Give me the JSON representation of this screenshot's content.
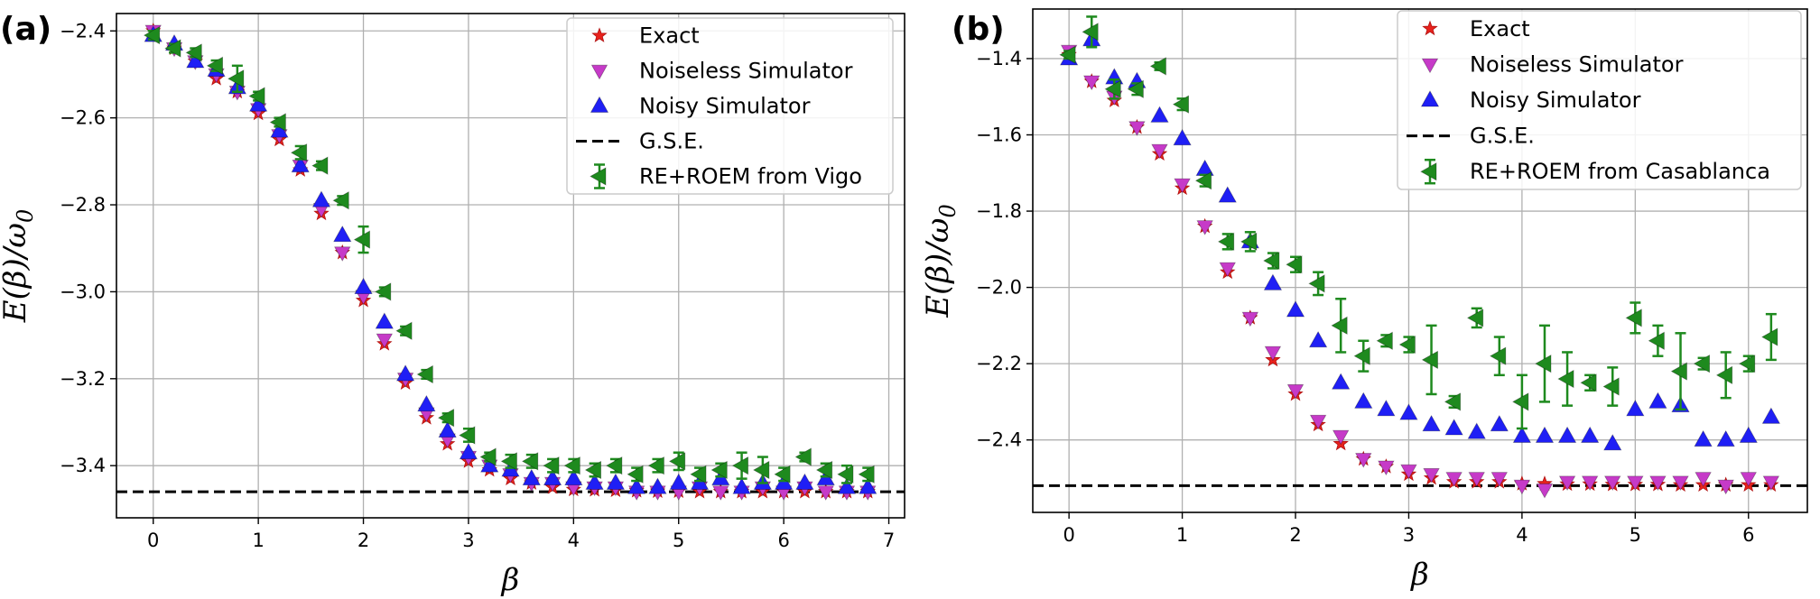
{
  "figure": {
    "panel_labels": [
      "(a)",
      "(b)"
    ]
  },
  "chart_data": [
    {
      "type": "scatter",
      "panel": "(a)",
      "xlabel": "β",
      "ylabel": "E(β)/ω0",
      "ylabel_parts": {
        "main": "E(β)/ω",
        "sub": "0"
      },
      "xlim": [
        -0.35,
        7.15
      ],
      "ylim": [
        -3.52,
        -2.36
      ],
      "xticks": [
        0,
        1,
        2,
        3,
        4,
        5,
        6,
        7
      ],
      "yticks": [
        -2.4,
        -2.6,
        -2.8,
        -3.0,
        -3.2,
        -3.4
      ],
      "ytick_labels": [
        "−2.4",
        "−2.6",
        "−2.8",
        "−3.0",
        "−3.2",
        "−3.4"
      ],
      "grid": true,
      "legend_position": "top-right",
      "gse": -3.46,
      "legend": [
        "Exact",
        "Noiseless Simulator",
        "Noisy Simulator",
        "G.S.E.",
        "RE+ROEM from Vigo"
      ],
      "x": [
        0,
        0.2,
        0.4,
        0.6,
        0.8,
        1.0,
        1.2,
        1.4,
        1.6,
        1.8,
        2.0,
        2.2,
        2.4,
        2.6,
        2.8,
        3.0,
        3.2,
        3.4,
        3.6,
        3.8,
        4.0,
        4.2,
        4.4,
        4.6,
        4.8,
        5.0,
        5.2,
        5.4,
        5.6,
        5.8,
        6.0,
        6.2,
        6.4,
        6.6,
        6.8
      ],
      "series": [
        {
          "name": "Exact",
          "marker": "star",
          "color": "#e8221c",
          "values": [
            -2.4,
            -2.44,
            -2.47,
            -2.51,
            -2.54,
            -2.59,
            -2.65,
            -2.72,
            -2.82,
            -2.91,
            -3.02,
            -3.12,
            -3.21,
            -3.29,
            -3.35,
            -3.39,
            -3.41,
            -3.43,
            -3.44,
            -3.45,
            -3.455,
            -3.456,
            -3.457,
            -3.458,
            -3.459,
            -3.459,
            -3.46,
            -3.46,
            -3.46,
            -3.46,
            -3.46,
            -3.46,
            -3.46,
            -3.46,
            -3.46
          ]
        },
        {
          "name": "Noiseless Simulator",
          "marker": "triangle-down",
          "color": "#c63ac8",
          "values": [
            -2.4,
            -2.44,
            -2.47,
            -2.5,
            -2.54,
            -2.58,
            -2.64,
            -2.71,
            -2.81,
            -2.91,
            -3.01,
            -3.11,
            -3.2,
            -3.28,
            -3.34,
            -3.38,
            -3.4,
            -3.42,
            -3.44,
            -3.44,
            -3.45,
            -3.45,
            -3.45,
            -3.46,
            -3.46,
            -3.46,
            -3.45,
            -3.46,
            -3.46,
            -3.45,
            -3.46,
            -3.45,
            -3.46,
            -3.46,
            -3.46
          ]
        },
        {
          "name": "Noisy Simulator",
          "marker": "triangle-up",
          "color": "#1f1ff5",
          "values": [
            -2.41,
            -2.43,
            -2.47,
            -2.49,
            -2.53,
            -2.57,
            -2.63,
            -2.71,
            -2.79,
            -2.87,
            -2.99,
            -3.07,
            -3.19,
            -3.26,
            -3.32,
            -3.37,
            -3.4,
            -3.41,
            -3.43,
            -3.43,
            -3.43,
            -3.44,
            -3.44,
            -3.45,
            -3.45,
            -3.44,
            -3.44,
            -3.43,
            -3.45,
            -3.44,
            -3.44,
            -3.44,
            -3.43,
            -3.45,
            -3.45
          ]
        },
        {
          "name": "RE+ROEM from Vigo",
          "marker": "triangle-left",
          "color": "#1e8a1e",
          "values": [
            -2.41,
            -2.44,
            -2.45,
            -2.48,
            -2.51,
            -2.55,
            -2.61,
            -2.68,
            -2.71,
            -2.79,
            -2.88,
            -3.0,
            -3.09,
            -3.19,
            -3.29,
            -3.33,
            -3.38,
            -3.39,
            -3.39,
            -3.4,
            -3.4,
            -3.41,
            -3.4,
            -3.42,
            -3.4,
            -3.39,
            -3.42,
            -3.41,
            -3.4,
            -3.41,
            -3.42,
            -3.38,
            -3.41,
            -3.42,
            -3.42
          ],
          "errors": [
            0.01,
            0.01,
            0.01,
            0.012,
            0.03,
            0.01,
            0.01,
            0.015,
            0.01,
            0.01,
            0.03,
            0.01,
            0.01,
            0.01,
            0.01,
            0.015,
            0.01,
            0.015,
            0.015,
            0.015,
            0.015,
            0.015,
            0.015,
            0.015,
            0.015,
            0.02,
            0.015,
            0.015,
            0.03,
            0.03,
            0.015,
            0.01,
            0.015,
            0.02,
            0.015
          ]
        }
      ]
    },
    {
      "type": "scatter",
      "panel": "(b)",
      "xlabel": "β",
      "ylabel": "E(β)/ω0",
      "ylabel_parts": {
        "main": "E(β)/ω",
        "sub": "0"
      },
      "xlim": [
        -0.32,
        6.52
      ],
      "ylim": [
        -2.59,
        -1.27
      ],
      "xticks": [
        0,
        1,
        2,
        3,
        4,
        5,
        6
      ],
      "yticks": [
        -1.4,
        -1.6,
        -1.8,
        -2.0,
        -2.2,
        -2.4
      ],
      "ytick_labels": [
        "−1.4",
        "−1.6",
        "−1.8",
        "−2.0",
        "−2.2",
        "−2.4"
      ],
      "grid": true,
      "legend_position": "top-right",
      "gse": -2.52,
      "legend": [
        "Exact",
        "Noiseless Simulator",
        "Noisy Simulator",
        "G.S.E.",
        "RE+ROEM from Casablanca"
      ],
      "x": [
        0,
        0.2,
        0.4,
        0.6,
        0.8,
        1.0,
        1.2,
        1.4,
        1.6,
        1.8,
        2.0,
        2.2,
        2.4,
        2.6,
        2.8,
        3.0,
        3.2,
        3.4,
        3.6,
        3.8,
        4.0,
        4.2,
        4.4,
        4.6,
        4.8,
        5.0,
        5.2,
        5.4,
        5.6,
        5.8,
        6.0,
        6.2
      ],
      "series": [
        {
          "name": "Exact",
          "marker": "star",
          "color": "#e8221c",
          "values": [
            -1.39,
            -1.46,
            -1.51,
            -1.58,
            -1.65,
            -1.74,
            -1.84,
            -1.96,
            -2.08,
            -2.19,
            -2.28,
            -2.36,
            -2.41,
            -2.45,
            -2.47,
            -2.49,
            -2.5,
            -2.51,
            -2.51,
            -2.51,
            -2.515,
            -2.515,
            -2.516,
            -2.516,
            -2.517,
            -2.517,
            -2.517,
            -2.518,
            -2.518,
            -2.518,
            -2.518,
            -2.518
          ]
        },
        {
          "name": "Noiseless Simulator",
          "marker": "triangle-down",
          "color": "#c63ac8",
          "values": [
            -1.38,
            -1.46,
            -1.5,
            -1.58,
            -1.64,
            -1.73,
            -1.84,
            -1.95,
            -2.08,
            -2.17,
            -2.27,
            -2.35,
            -2.39,
            -2.45,
            -2.47,
            -2.48,
            -2.49,
            -2.5,
            -2.5,
            -2.5,
            -2.52,
            -2.53,
            -2.51,
            -2.51,
            -2.51,
            -2.51,
            -2.51,
            -2.51,
            -2.5,
            -2.52,
            -2.5,
            -2.51
          ]
        },
        {
          "name": "Noisy Simulator",
          "marker": "triangle-up",
          "color": "#1f1ff5",
          "values": [
            -1.4,
            -1.35,
            -1.45,
            -1.46,
            -1.55,
            -1.61,
            -1.69,
            -1.76,
            -1.88,
            -1.99,
            -2.06,
            -2.14,
            -2.25,
            -2.3,
            -2.32,
            -2.33,
            -2.36,
            -2.37,
            -2.38,
            -2.36,
            -2.39,
            -2.39,
            -2.39,
            -2.39,
            -2.41,
            -2.32,
            -2.3,
            -2.31,
            -2.4,
            -2.4,
            -2.39,
            -2.34
          ]
        },
        {
          "name": "RE+ROEM from Casablanca",
          "marker": "triangle-left",
          "color": "#1e8a1e",
          "values": [
            -1.39,
            -1.33,
            -1.48,
            -1.48,
            -1.42,
            -1.52,
            -1.72,
            -1.88,
            -1.88,
            -1.93,
            -1.94,
            -1.99,
            -2.1,
            -2.18,
            -2.14,
            -2.15,
            -2.19,
            -2.3,
            -2.08,
            -2.18,
            -2.3,
            -2.2,
            -2.24,
            -2.25,
            -2.26,
            -2.08,
            -2.14,
            -2.22,
            -2.2,
            -2.23,
            -2.2,
            -2.13
          ],
          "errors": [
            0.01,
            0.04,
            0.025,
            0.015,
            0.01,
            0.015,
            0.015,
            0.02,
            0.025,
            0.02,
            0.02,
            0.03,
            0.07,
            0.04,
            0.015,
            0.02,
            0.09,
            0.015,
            0.025,
            0.05,
            0.07,
            0.1,
            0.07,
            0.02,
            0.05,
            0.04,
            0.04,
            0.1,
            0.015,
            0.06,
            0.02,
            0.06
          ]
        }
      ]
    }
  ]
}
